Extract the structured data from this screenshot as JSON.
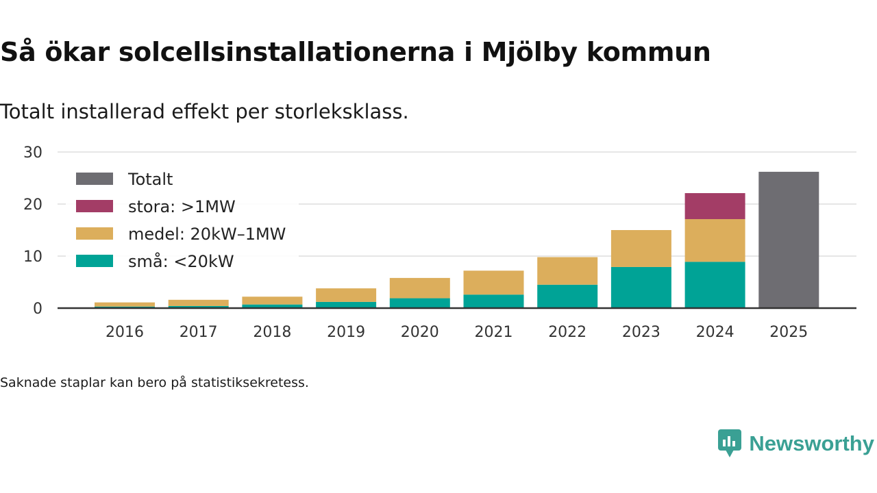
{
  "header": {
    "title": "Så ökar solcellsinstallationerna i Mjölby kommun",
    "subtitle": "Totalt installerad effekt per storleksklass."
  },
  "footer": {
    "note": "Saknade staplar kan bero på statistiksekretess.",
    "brand": "Newsworthy",
    "brand_icon": "newsworthy-logo-icon"
  },
  "colors": {
    "totalt": "#6e6d72",
    "stora": "#a33d66",
    "medel": "#dcae5c",
    "sma": "#00a396",
    "grid": "#dddddd",
    "axis": "#333333",
    "brand": "#3aa094"
  },
  "chart_data": {
    "type": "bar",
    "stacked": true,
    "title": "Så ökar solcellsinstallationerna i Mjölby kommun",
    "subtitle": "Totalt installerad effekt per storleksklass.",
    "xlabel": "",
    "ylabel": "",
    "ylim": [
      0,
      30
    ],
    "yticks": [
      0,
      10,
      20,
      30
    ],
    "grid": true,
    "legend_position": "top-left",
    "categories": [
      "2016",
      "2017",
      "2018",
      "2019",
      "2020",
      "2021",
      "2022",
      "2023",
      "2024",
      "2025"
    ],
    "series": [
      {
        "name": "små: <20kW",
        "key": "sma",
        "values": [
          0.3,
          0.4,
          0.7,
          1.2,
          1.9,
          2.6,
          4.5,
          7.9,
          8.9,
          null
        ]
      },
      {
        "name": "medel: 20kW–1MW",
        "key": "medel",
        "values": [
          0.8,
          1.2,
          1.5,
          2.6,
          3.9,
          4.6,
          5.3,
          7.1,
          8.2,
          null
        ]
      },
      {
        "name": "stora: >1MW",
        "key": "stora",
        "values": [
          null,
          null,
          null,
          null,
          null,
          null,
          null,
          null,
          5.0,
          null
        ]
      },
      {
        "name": "Totalt",
        "key": "totalt",
        "values": [
          null,
          null,
          null,
          null,
          null,
          null,
          null,
          null,
          null,
          26.2
        ]
      }
    ],
    "legend_order": [
      "totalt",
      "stora",
      "medel",
      "sma"
    ]
  }
}
